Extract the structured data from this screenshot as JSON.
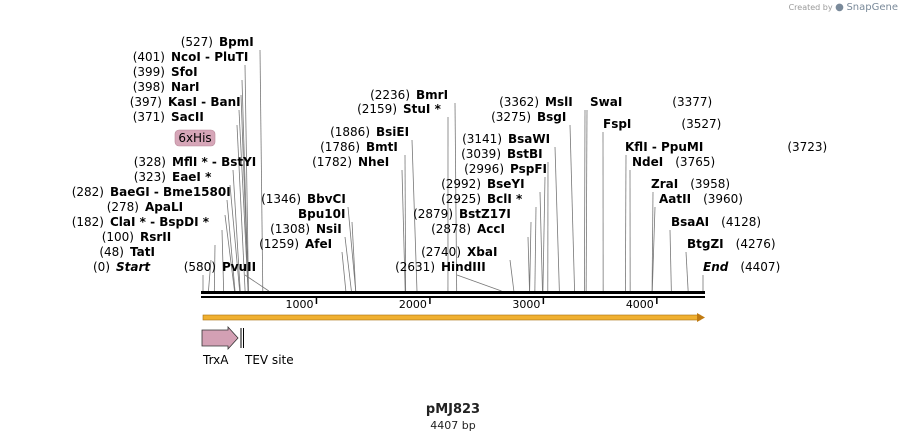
{
  "credit": {
    "text": "Created by",
    "brand": "SnapGene"
  },
  "plasmid": {
    "name": "pMJ823",
    "length_label": "4407 bp",
    "length": 4407
  },
  "axis": {
    "ticks": [
      1000,
      2000,
      3000,
      4000
    ]
  },
  "colors": {
    "backbone": "#000000",
    "orf": "#f0b030",
    "trxa": "#d3a0b4",
    "his": "#d6a6b8"
  },
  "features": [
    {
      "name": "TrxA",
      "start": 1,
      "end": 330,
      "type": "arrow"
    },
    {
      "name": "TEV site",
      "start": 345,
      "end": 365,
      "type": "site"
    },
    {
      "name": "6xHis",
      "start": 345,
      "end": 365,
      "type": "tag"
    }
  ],
  "sites": [
    {
      "name": "BpmI",
      "pos": "(527)",
      "loc": 527
    },
    {
      "name": "NcoI  -  PluTI",
      "pos": "(401)",
      "loc": 401
    },
    {
      "name": "SfoI",
      "pos": "(399)",
      "loc": 399
    },
    {
      "name": "NarI",
      "pos": "(398)",
      "loc": 398
    },
    {
      "name": "KasI  -  BanI",
      "pos": "(397)",
      "loc": 397
    },
    {
      "name": "SacII",
      "pos": "(371)",
      "loc": 371
    },
    {
      "name": "MflI *  -  BstYI",
      "pos": "(328)",
      "loc": 328
    },
    {
      "name": "EaeI *",
      "pos": "(323)",
      "loc": 323
    },
    {
      "name": "BaeGI  -  Bme1580I",
      "pos": "(282)",
      "loc": 282
    },
    {
      "name": "ApaLI",
      "pos": "(278)",
      "loc": 278
    },
    {
      "name": "ClaI *  -  BspDI *",
      "pos": "(182)",
      "loc": 182
    },
    {
      "name": "RsrII",
      "pos": "(100)",
      "loc": 100
    },
    {
      "name": "TatI",
      "pos": "(48)",
      "loc": 48
    },
    {
      "name": "Start",
      "pos": "(0)",
      "loc": 0
    },
    {
      "name": "PvuII",
      "pos": "(580)",
      "loc": 580
    },
    {
      "name": "BbvCI",
      "pos": "(1346)",
      "loc": 1346
    },
    {
      "name": "Bpu10I",
      "pos": "",
      "loc": 1346
    },
    {
      "name": "NsiI",
      "pos": "(1308)",
      "loc": 1308
    },
    {
      "name": "AfeI",
      "pos": "(1259)",
      "loc": 1259
    },
    {
      "name": "BmrI",
      "pos": "(2236)",
      "loc": 2236
    },
    {
      "name": "StuI *",
      "pos": "(2159)",
      "loc": 2159
    },
    {
      "name": "BsiEI",
      "pos": "(1886)",
      "loc": 1886
    },
    {
      "name": "BmtI",
      "pos": "(1786)",
      "loc": 1786
    },
    {
      "name": "NheI",
      "pos": "(1782)",
      "loc": 1782
    },
    {
      "name": "HindIII",
      "pos": "(2631)",
      "loc": 2631
    },
    {
      "name": "BsaWI",
      "pos": "(3141)",
      "loc": 3141
    },
    {
      "name": "BstBI",
      "pos": "(3039)",
      "loc": 3039
    },
    {
      "name": "PspFI",
      "pos": "(2996)",
      "loc": 2996
    },
    {
      "name": "BseYI",
      "pos": "(2992)",
      "loc": 2992
    },
    {
      "name": "BclI *",
      "pos": "(2925)",
      "loc": 2925
    },
    {
      "name": "BstZ17I",
      "pos": "(2879)",
      "loc": 2879
    },
    {
      "name": "AccI",
      "pos": "(2878)",
      "loc": 2878
    },
    {
      "name": "XbaI",
      "pos": "(2740)",
      "loc": 2740
    },
    {
      "name": "MslI",
      "pos": "(3362)",
      "loc": 3362
    },
    {
      "name": "BsgI",
      "pos": "(3275)",
      "loc": 3275
    },
    {
      "name": "SwaI",
      "pos": "(3377)",
      "loc": 3377
    },
    {
      "name": "FspI",
      "pos": "(3527)",
      "loc": 3527
    },
    {
      "name": "KflI  -  PpuMI",
      "pos": "(3723)",
      "loc": 3723
    },
    {
      "name": "NdeI",
      "pos": "(3765)",
      "loc": 3765
    },
    {
      "name": "ZraI",
      "pos": "(3958)",
      "loc": 3958
    },
    {
      "name": "AatII",
      "pos": "(3960)",
      "loc": 3960
    },
    {
      "name": "BsaAI",
      "pos": "(4128)",
      "loc": 4128
    },
    {
      "name": "BtgZI",
      "pos": "(4276)",
      "loc": 4276
    },
    {
      "name": "End",
      "pos": "(4407)",
      "loc": 4407
    }
  ]
}
